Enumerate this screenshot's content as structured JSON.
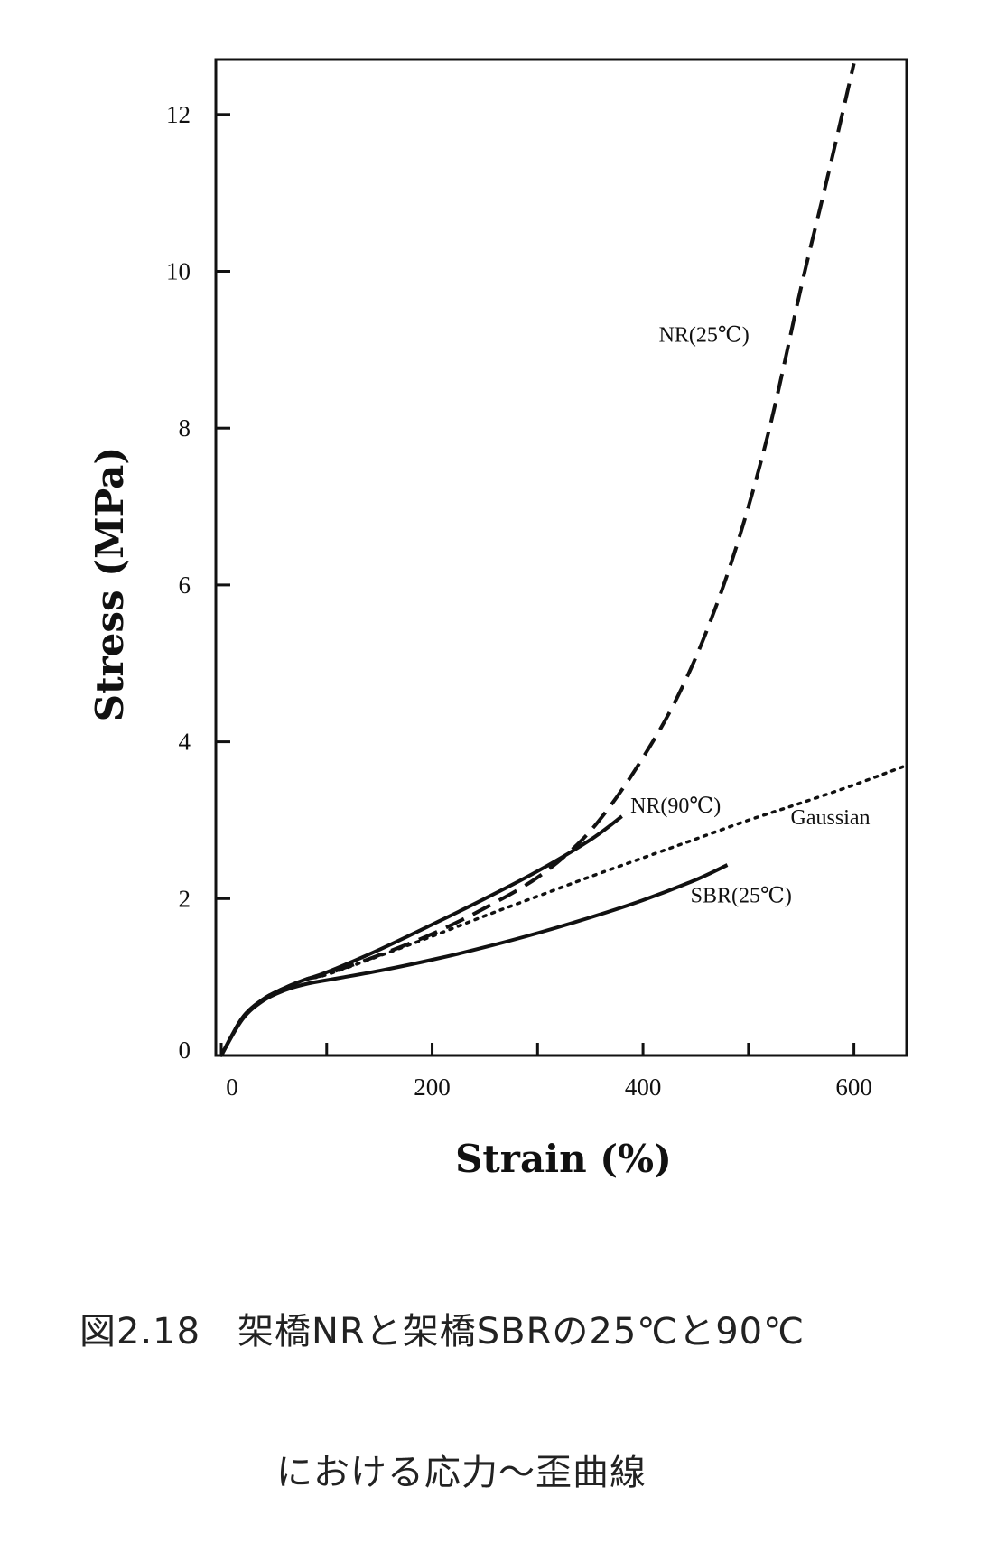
{
  "chart_data": {
    "type": "line",
    "xlabel": "Strain (%)",
    "ylabel": "Stress (MPa)",
    "xlim": [
      0,
      650
    ],
    "ylim": [
      0,
      12.7
    ],
    "xticks": [
      0,
      200,
      400,
      600
    ],
    "xtick_labels": [
      "0",
      "200",
      "400",
      "600"
    ],
    "yticks": [
      0,
      2,
      4,
      6,
      8,
      10,
      12
    ],
    "ytick_labels": [
      "0",
      "2",
      "4",
      "6",
      "8",
      "10",
      "12"
    ],
    "grid": false,
    "series": [
      {
        "name": "NR(25℃)",
        "style": "dashed",
        "x": [
          0,
          20,
          40,
          60,
          80,
          100,
          150,
          200,
          250,
          300,
          340,
          370,
          400,
          430,
          460,
          490,
          520,
          550,
          575,
          600
        ],
        "y": [
          0,
          0.48,
          0.72,
          0.86,
          0.97,
          1.04,
          1.28,
          1.55,
          1.88,
          2.27,
          2.72,
          3.2,
          3.8,
          4.5,
          5.4,
          6.55,
          8.0,
          9.8,
          11.2,
          12.65
        ]
      },
      {
        "name": "NR(90℃)",
        "style": "solid",
        "x": [
          0,
          20,
          40,
          60,
          80,
          100,
          150,
          200,
          250,
          300,
          350,
          380
        ],
        "y": [
          0,
          0.48,
          0.72,
          0.86,
          0.97,
          1.06,
          1.35,
          1.67,
          2.0,
          2.35,
          2.75,
          3.05
        ]
      },
      {
        "name": "Gaussian",
        "style": "dotted",
        "x": [
          0,
          20,
          40,
          60,
          80,
          100,
          150,
          200,
          250,
          300,
          350,
          400,
          450,
          500,
          550,
          600,
          650
        ],
        "y": [
          0,
          0.48,
          0.72,
          0.86,
          0.97,
          1.03,
          1.27,
          1.52,
          1.78,
          2.03,
          2.28,
          2.52,
          2.76,
          3.0,
          3.22,
          3.45,
          3.7
        ]
      },
      {
        "name": "SBR(25℃)",
        "style": "solid",
        "x": [
          0,
          20,
          40,
          60,
          80,
          100,
          150,
          200,
          250,
          300,
          350,
          400,
          450,
          480
        ],
        "y": [
          0,
          0.46,
          0.7,
          0.83,
          0.91,
          0.96,
          1.08,
          1.22,
          1.38,
          1.56,
          1.76,
          1.98,
          2.24,
          2.43
        ]
      }
    ],
    "series_labels": [
      {
        "text": "NR(25℃)",
        "x": 415,
        "y": 9.1
      },
      {
        "text": "NR(90℃)",
        "x": 388,
        "y": 3.1
      },
      {
        "text": "Gaussian",
        "x": 540,
        "y": 2.95
      },
      {
        "text": "SBR(25℃)",
        "x": 445,
        "y": 1.95
      }
    ]
  },
  "caption": {
    "line1": "図2.18　架橋NRと架橋SBRの25℃と90℃",
    "line2": "における応力～歪曲線"
  }
}
